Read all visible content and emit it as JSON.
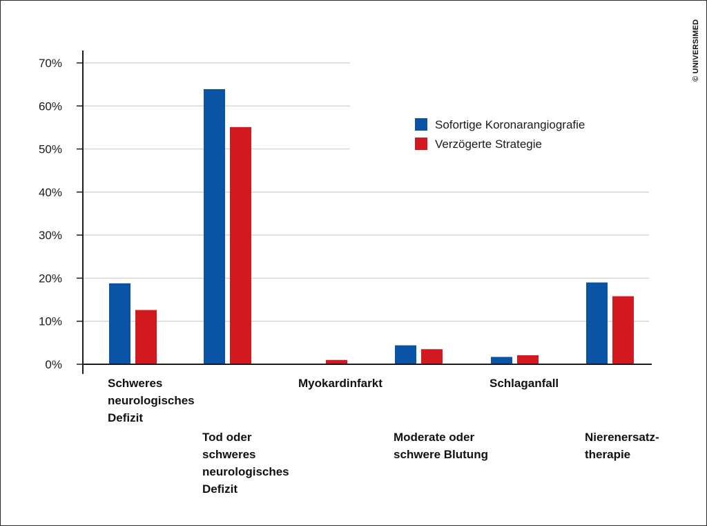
{
  "copyright": "© UNIVERSIMED",
  "chart_data": {
    "type": "bar",
    "categories": [
      "Schweres neurologisches Defizit",
      "Tod oder schweres neurologisches Defizit",
      "Myokardinfarkt",
      "Moderate oder schwere Blutung",
      "Schlaganfall",
      "Nierenersatz- therapie"
    ],
    "category_label_lines": [
      [
        "Schweres",
        "neurologisches",
        "Defizit"
      ],
      [
        "Tod oder",
        "schweres",
        "neurologisches",
        "Defizit"
      ],
      [
        "Myokardinfarkt"
      ],
      [
        "Moderate oder",
        "schwere Blutung"
      ],
      [
        "Schlaganfall"
      ],
      [
        "Nierenersatz-",
        "therapie"
      ]
    ],
    "series": [
      {
        "name": "Sofortige Koronarangiografie",
        "color": "#0a53a5",
        "values": [
          18.8,
          63.9,
          0,
          4.4,
          1.7,
          19.0
        ]
      },
      {
        "name": "Verzögerte Strategie",
        "color": "#d2191f",
        "values": [
          12.6,
          55.1,
          1.0,
          3.5,
          2.1,
          15.8
        ]
      }
    ],
    "yticks": [
      "0%",
      "10%",
      "20%",
      "30%",
      "40%",
      "50%",
      "60%",
      "70%"
    ],
    "ylim": [
      0,
      70
    ],
    "grid": true,
    "legend_position": "top-right"
  }
}
